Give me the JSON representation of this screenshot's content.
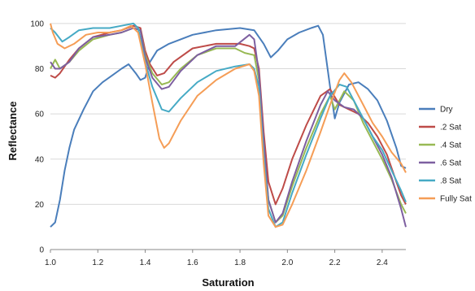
{
  "chart_data": {
    "type": "line",
    "title": "",
    "xlabel": "Saturation",
    "ylabel": "Reflectance",
    "xlim": [
      1.0,
      2.5
    ],
    "ylim": [
      0,
      105
    ],
    "x_ticks": [
      "1.0",
      "1.2",
      "1.4",
      "1.6",
      "1.8",
      "2.0",
      "2.2",
      "2.4"
    ],
    "y_ticks": [
      "0",
      "20",
      "40",
      "60",
      "80",
      "100"
    ],
    "grid": "horizontal",
    "legend_position": "right",
    "series": [
      {
        "name": "Dry",
        "color": "#4a7ebb",
        "points": [
          [
            1.0,
            10
          ],
          [
            1.02,
            12
          ],
          [
            1.04,
            22
          ],
          [
            1.06,
            35
          ],
          [
            1.08,
            45
          ],
          [
            1.1,
            53
          ],
          [
            1.14,
            62
          ],
          [
            1.18,
            70
          ],
          [
            1.22,
            74
          ],
          [
            1.26,
            77
          ],
          [
            1.3,
            80
          ],
          [
            1.33,
            82
          ],
          [
            1.36,
            78
          ],
          [
            1.38,
            75
          ],
          [
            1.4,
            76
          ],
          [
            1.42,
            83
          ],
          [
            1.45,
            88
          ],
          [
            1.5,
            91
          ],
          [
            1.6,
            95
          ],
          [
            1.7,
            97
          ],
          [
            1.8,
            98
          ],
          [
            1.86,
            97
          ],
          [
            1.9,
            91
          ],
          [
            1.93,
            85
          ],
          [
            1.96,
            88
          ],
          [
            2.0,
            93
          ],
          [
            2.05,
            96
          ],
          [
            2.1,
            98
          ],
          [
            2.13,
            99
          ],
          [
            2.15,
            95
          ],
          [
            2.18,
            72
          ],
          [
            2.2,
            58
          ],
          [
            2.22,
            65
          ],
          [
            2.26,
            73
          ],
          [
            2.3,
            74
          ],
          [
            2.34,
            71
          ],
          [
            2.38,
            66
          ],
          [
            2.42,
            57
          ],
          [
            2.46,
            45
          ],
          [
            2.48,
            37
          ],
          [
            2.5,
            36
          ]
        ]
      },
      {
        "name": ".2 Sat",
        "color": "#be4b48",
        "points": [
          [
            1.0,
            77
          ],
          [
            1.02,
            76
          ],
          [
            1.04,
            78
          ],
          [
            1.08,
            84
          ],
          [
            1.12,
            89
          ],
          [
            1.18,
            94
          ],
          [
            1.25,
            96
          ],
          [
            1.3,
            97
          ],
          [
            1.35,
            99
          ],
          [
            1.38,
            98
          ],
          [
            1.4,
            88
          ],
          [
            1.42,
            82
          ],
          [
            1.45,
            77
          ],
          [
            1.48,
            78
          ],
          [
            1.52,
            83
          ],
          [
            1.6,
            89
          ],
          [
            1.7,
            91
          ],
          [
            1.8,
            91
          ],
          [
            1.84,
            90
          ],
          [
            1.86,
            89
          ],
          [
            1.88,
            80
          ],
          [
            1.9,
            52
          ],
          [
            1.92,
            30
          ],
          [
            1.95,
            20
          ],
          [
            1.98,
            27
          ],
          [
            2.02,
            40
          ],
          [
            2.08,
            55
          ],
          [
            2.14,
            68
          ],
          [
            2.18,
            71
          ],
          [
            2.22,
            64
          ],
          [
            2.26,
            62
          ],
          [
            2.3,
            60
          ],
          [
            2.34,
            56
          ],
          [
            2.38,
            50
          ],
          [
            2.42,
            42
          ],
          [
            2.46,
            30
          ],
          [
            2.48,
            24
          ],
          [
            2.5,
            20
          ]
        ]
      },
      {
        "name": ".4 Sat",
        "color": "#98b954",
        "points": [
          [
            1.0,
            80
          ],
          [
            1.02,
            84
          ],
          [
            1.04,
            80
          ],
          [
            1.08,
            83
          ],
          [
            1.12,
            88
          ],
          [
            1.18,
            93
          ],
          [
            1.25,
            95
          ],
          [
            1.3,
            96
          ],
          [
            1.35,
            98
          ],
          [
            1.38,
            97
          ],
          [
            1.4,
            86
          ],
          [
            1.43,
            78
          ],
          [
            1.47,
            73
          ],
          [
            1.5,
            74
          ],
          [
            1.55,
            80
          ],
          [
            1.62,
            86
          ],
          [
            1.7,
            89
          ],
          [
            1.78,
            89
          ],
          [
            1.82,
            87
          ],
          [
            1.86,
            86
          ],
          [
            1.88,
            75
          ],
          [
            1.9,
            45
          ],
          [
            1.92,
            22
          ],
          [
            1.95,
            12
          ],
          [
            1.98,
            15
          ],
          [
            2.02,
            28
          ],
          [
            2.08,
            45
          ],
          [
            2.14,
            60
          ],
          [
            2.18,
            68
          ],
          [
            2.2,
            62
          ],
          [
            2.24,
            70
          ],
          [
            2.28,
            66
          ],
          [
            2.32,
            56
          ],
          [
            2.36,
            48
          ],
          [
            2.4,
            40
          ],
          [
            2.44,
            31
          ],
          [
            2.48,
            20
          ],
          [
            2.5,
            16
          ]
        ]
      },
      {
        "name": ".6 Sat",
        "color": "#7d5fa0",
        "points": [
          [
            1.0,
            83
          ],
          [
            1.02,
            80
          ],
          [
            1.04,
            80
          ],
          [
            1.08,
            83
          ],
          [
            1.12,
            89
          ],
          [
            1.18,
            94
          ],
          [
            1.25,
            95
          ],
          [
            1.3,
            96
          ],
          [
            1.35,
            98
          ],
          [
            1.38,
            97
          ],
          [
            1.4,
            85
          ],
          [
            1.43,
            76
          ],
          [
            1.47,
            71
          ],
          [
            1.5,
            72
          ],
          [
            1.55,
            79
          ],
          [
            1.62,
            86
          ],
          [
            1.7,
            90
          ],
          [
            1.78,
            90
          ],
          [
            1.84,
            95
          ],
          [
            1.86,
            93
          ],
          [
            1.88,
            78
          ],
          [
            1.9,
            48
          ],
          [
            1.92,
            22
          ],
          [
            1.95,
            12
          ],
          [
            1.98,
            16
          ],
          [
            2.02,
            30
          ],
          [
            2.08,
            48
          ],
          [
            2.14,
            64
          ],
          [
            2.17,
            70
          ],
          [
            2.2,
            66
          ],
          [
            2.24,
            63
          ],
          [
            2.28,
            62
          ],
          [
            2.32,
            58
          ],
          [
            2.36,
            50
          ],
          [
            2.4,
            42
          ],
          [
            2.44,
            32
          ],
          [
            2.48,
            18
          ],
          [
            2.5,
            10
          ]
        ]
      },
      {
        "name": ".8 Sat",
        "color": "#46aac5",
        "points": [
          [
            1.0,
            98
          ],
          [
            1.02,
            96
          ],
          [
            1.05,
            92
          ],
          [
            1.08,
            94
          ],
          [
            1.12,
            97
          ],
          [
            1.18,
            98
          ],
          [
            1.25,
            98
          ],
          [
            1.3,
            99
          ],
          [
            1.35,
            100
          ],
          [
            1.37,
            98
          ],
          [
            1.4,
            83
          ],
          [
            1.43,
            72
          ],
          [
            1.47,
            62
          ],
          [
            1.5,
            61
          ],
          [
            1.55,
            67
          ],
          [
            1.62,
            74
          ],
          [
            1.7,
            79
          ],
          [
            1.78,
            81
          ],
          [
            1.84,
            82
          ],
          [
            1.86,
            80
          ],
          [
            1.88,
            72
          ],
          [
            1.9,
            42
          ],
          [
            1.92,
            18
          ],
          [
            1.95,
            10
          ],
          [
            1.98,
            12
          ],
          [
            2.02,
            25
          ],
          [
            2.08,
            42
          ],
          [
            2.14,
            58
          ],
          [
            2.18,
            68
          ],
          [
            2.22,
            73
          ],
          [
            2.25,
            72
          ],
          [
            2.28,
            66
          ],
          [
            2.32,
            58
          ],
          [
            2.36,
            50
          ],
          [
            2.4,
            44
          ],
          [
            2.44,
            35
          ],
          [
            2.48,
            26
          ],
          [
            2.5,
            21
          ]
        ]
      },
      {
        "name": "Fully Sat",
        "color": "#f59d56",
        "points": [
          [
            1.0,
            100
          ],
          [
            1.01,
            96
          ],
          [
            1.03,
            91
          ],
          [
            1.06,
            89
          ],
          [
            1.1,
            91
          ],
          [
            1.15,
            95
          ],
          [
            1.2,
            96
          ],
          [
            1.25,
            96
          ],
          [
            1.3,
            97
          ],
          [
            1.34,
            99
          ],
          [
            1.37,
            96
          ],
          [
            1.4,
            82
          ],
          [
            1.43,
            65
          ],
          [
            1.46,
            49
          ],
          [
            1.48,
            45
          ],
          [
            1.5,
            47
          ],
          [
            1.55,
            57
          ],
          [
            1.62,
            68
          ],
          [
            1.7,
            75
          ],
          [
            1.78,
            80
          ],
          [
            1.84,
            82
          ],
          [
            1.86,
            79
          ],
          [
            1.88,
            68
          ],
          [
            1.9,
            38
          ],
          [
            1.92,
            15
          ],
          [
            1.95,
            10
          ],
          [
            1.98,
            11
          ],
          [
            2.02,
            20
          ],
          [
            2.08,
            35
          ],
          [
            2.14,
            52
          ],
          [
            2.18,
            64
          ],
          [
            2.22,
            75
          ],
          [
            2.24,
            78
          ],
          [
            2.27,
            74
          ],
          [
            2.32,
            64
          ],
          [
            2.36,
            56
          ],
          [
            2.4,
            50
          ],
          [
            2.44,
            43
          ],
          [
            2.48,
            38
          ],
          [
            2.5,
            34
          ]
        ]
      }
    ]
  }
}
